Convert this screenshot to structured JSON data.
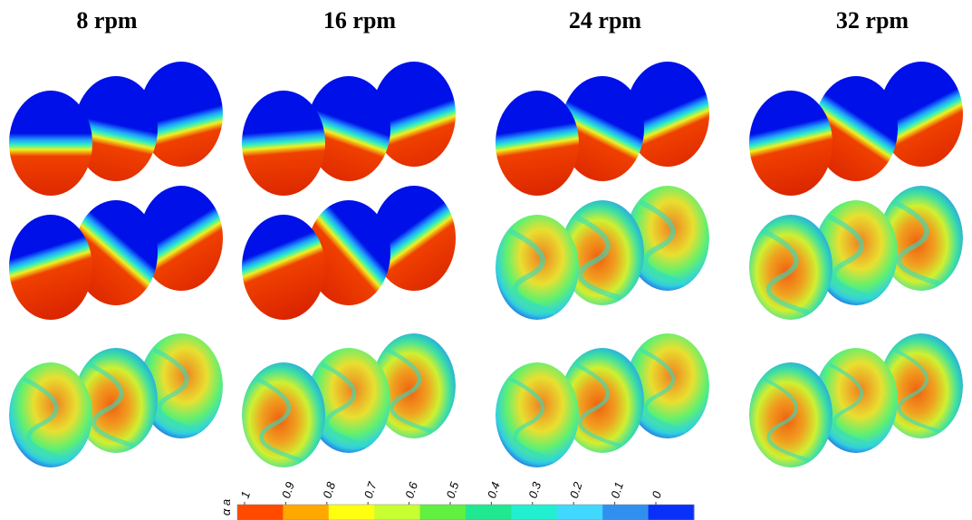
{
  "column_titles": [
    "8 rpm",
    "16 rpm",
    "24 rpm",
    "32 rpm"
  ],
  "colorbar": {
    "label": "α a",
    "ticks": [
      1,
      0.9,
      0.8,
      0.7,
      0.6,
      0.5,
      0.4,
      0.3,
      0.2,
      0.1,
      0
    ],
    "colors": [
      "#ff4a00",
      "#ffa800",
      "#ffff10",
      "#c8ff30",
      "#60f040",
      "#20e890",
      "#20f0d0",
      "#40d8ff",
      "#3090f0",
      "#0830f8"
    ]
  }
}
